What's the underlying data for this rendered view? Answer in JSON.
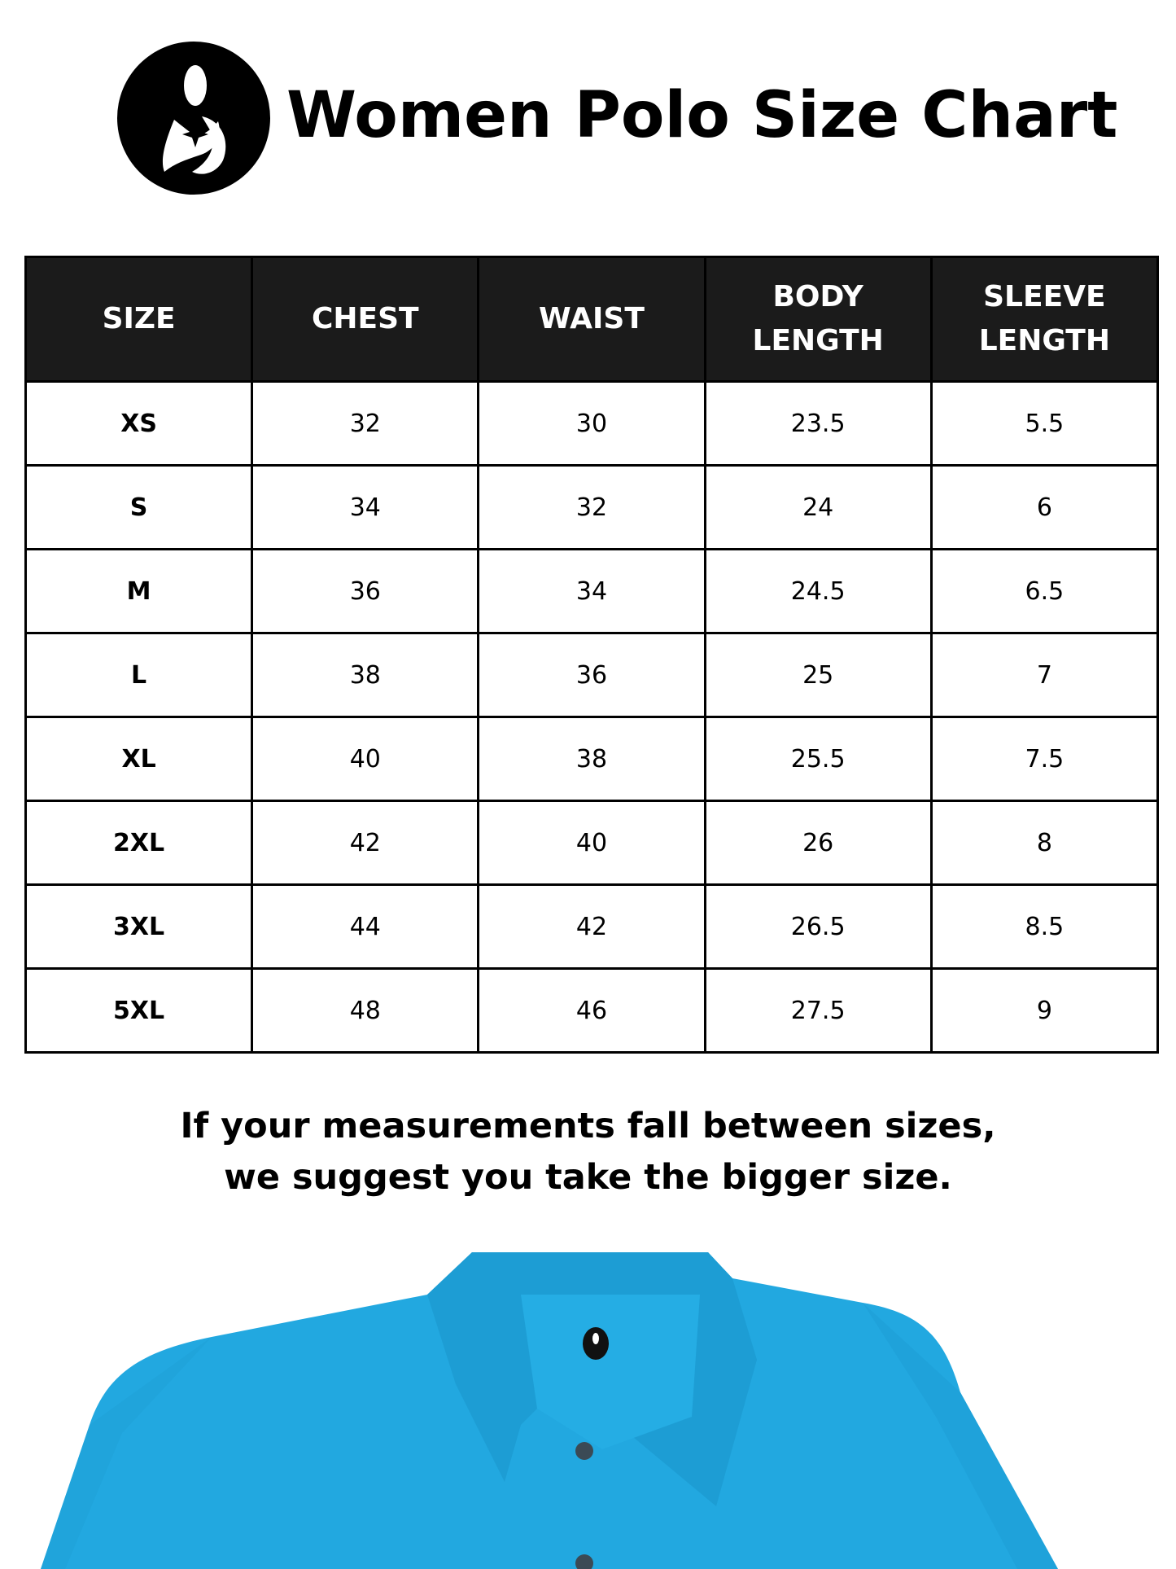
{
  "header": {
    "logo_icon": "mother-child-logo-icon",
    "title": "Women Polo Size Chart"
  },
  "table": {
    "columns": [
      {
        "line1": "SIZE",
        "line2": ""
      },
      {
        "line1": "CHEST",
        "line2": ""
      },
      {
        "line1": "WAIST",
        "line2": ""
      },
      {
        "line1": "BODY",
        "line2": "LENGTH"
      },
      {
        "line1": "SLEEVE",
        "line2": "LENGTH"
      }
    ],
    "rows": [
      [
        "XS",
        "32",
        "30",
        "23.5",
        "5.5"
      ],
      [
        "S",
        "34",
        "32",
        "24",
        "6"
      ],
      [
        "M",
        "36",
        "34",
        "24.5",
        "6.5"
      ],
      [
        "L",
        "38",
        "36",
        "25",
        "7"
      ],
      [
        "XL",
        "40",
        "38",
        "25.5",
        "7.5"
      ],
      [
        "2XL",
        "42",
        "40",
        "26",
        "8"
      ],
      [
        "3XL",
        "44",
        "42",
        "26.5",
        "8.5"
      ],
      [
        "5XL",
        "48",
        "46",
        "27.5",
        "9"
      ]
    ]
  },
  "note": {
    "line1": "If your measurements fall between sizes,",
    "line2": "we suggest you take the bigger size."
  },
  "colors": {
    "header_bg": "#1b1b1b",
    "shirt": "#22a8e0"
  }
}
